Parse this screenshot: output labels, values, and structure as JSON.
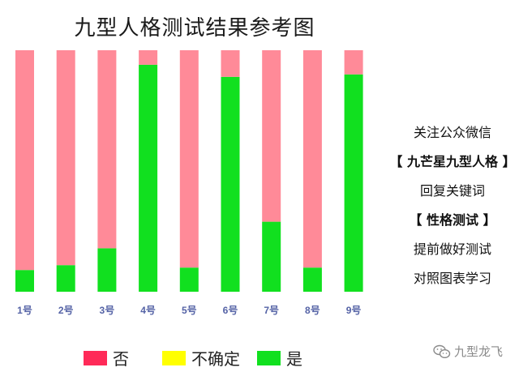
{
  "chart_data": {
    "type": "bar",
    "stacked": true,
    "title": "九型人格测试结果参考图",
    "categories": [
      "1号",
      "2号",
      "3号",
      "4号",
      "5号",
      "6号",
      "7号",
      "8号",
      "9号"
    ],
    "series": [
      {
        "name": "是",
        "color": "#11e01f",
        "values": [
          9,
          11,
          18,
          94,
          10,
          89,
          29,
          10,
          90
        ]
      },
      {
        "name": "不确定",
        "color": "#ffff00",
        "values": [
          0,
          0,
          0,
          0,
          0,
          0,
          0,
          0,
          0
        ]
      },
      {
        "name": "否",
        "color": "#ff8a98",
        "values": [
          91,
          89,
          82,
          6,
          90,
          11,
          71,
          90,
          10
        ]
      }
    ],
    "ylim": [
      0,
      100
    ],
    "legend": {
      "position": "bottom",
      "items": [
        {
          "label": "否",
          "color": "#ff2a58"
        },
        {
          "label": "不确定",
          "color": "#ffff00"
        },
        {
          "label": "是",
          "color": "#11e01f"
        }
      ]
    }
  },
  "side_panel": {
    "lines": [
      "关注公众微信",
      "【 九芒星九型人格 】",
      "回复关键词",
      "【 性格测试 】",
      "提前做好测试",
      "对照图表学习"
    ]
  },
  "watermark": {
    "text": "九型龙飞",
    "icon": "wechat-icon"
  }
}
